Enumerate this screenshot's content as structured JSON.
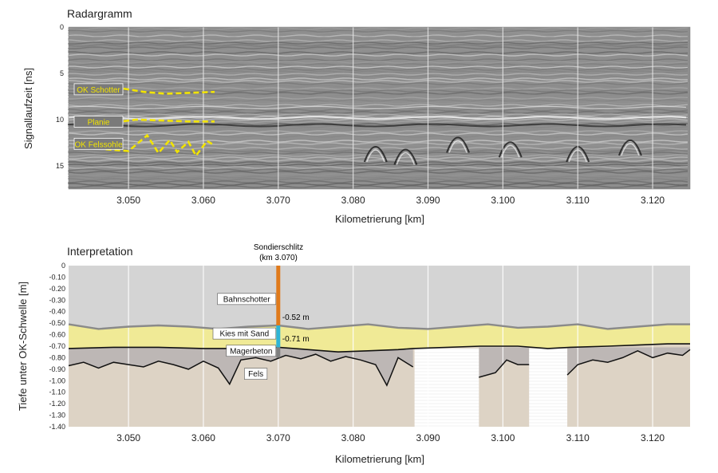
{
  "chart_data": [
    {
      "type": "heatmap",
      "title": "Radargramm",
      "xlabel": "Kilometrierung [km]",
      "ylabel": "Signallaufzeit [ns]",
      "xlim": [
        3.042,
        3.125
      ],
      "ylim": [
        0,
        17.5
      ],
      "x_ticks": [
        "3.050",
        "3.060",
        "3.070",
        "3.080",
        "3.090",
        "3.100",
        "3.110",
        "3.120"
      ],
      "y_ticks": [
        "0",
        "5",
        "10",
        "15"
      ],
      "horizons": [
        {
          "label": "OK Schotter",
          "color": "#f2e400",
          "x": [
            3.0435,
            3.046,
            3.049,
            3.052,
            3.055,
            3.058,
            3.0615
          ],
          "y": [
            6.8,
            6.9,
            6.6,
            7.0,
            7.2,
            7.1,
            7.0
          ]
        },
        {
          "label": "Planie",
          "color": "#f2e400",
          "x": [
            3.0435,
            3.047,
            3.051,
            3.055,
            3.058,
            3.0615
          ],
          "y": [
            10.3,
            10.4,
            10.0,
            10.1,
            10.2,
            10.2
          ]
        },
        {
          "label": "OK Felssohle",
          "color": "#f2e400",
          "x": [
            3.0435,
            3.047,
            3.05,
            3.0525,
            3.054,
            3.0555,
            3.0565,
            3.058,
            3.059,
            3.0605,
            3.0615
          ],
          "y": [
            12.7,
            13.2,
            13.4,
            11.7,
            13.6,
            12.2,
            13.5,
            12.4,
            13.9,
            12.3,
            12.8
          ]
        }
      ]
    },
    {
      "type": "area",
      "title": "Interpretation",
      "xlabel": "Kilometrierung [km]",
      "ylabel": "Tiefe unter OK-Schwelle [m]",
      "xlim": [
        3.042,
        3.125
      ],
      "ylim": [
        -1.4,
        0
      ],
      "x_ticks": [
        "3.050",
        "3.060",
        "3.070",
        "3.080",
        "3.090",
        "3.100",
        "3.110",
        "3.120"
      ],
      "y_ticks": [
        "0",
        "-0.10",
        "-0.20",
        "-0.30",
        "-0.40",
        "-0.50",
        "-0.60",
        "-0.70",
        "-0.80",
        "-0.90",
        "-1.00",
        "-1.10",
        "-1.20",
        "-1.30",
        "-1.40"
      ],
      "layers": [
        "Bahnschotter",
        "Kies mit Sand",
        "Magerbeton",
        "Fels"
      ],
      "colors": {
        "Bahnschotter": "#d4d4d4",
        "Kies mit Sand": "#f0ea96",
        "Magerbeton": "#bdb7b5",
        "Fels": "#ddd3c5"
      },
      "series": [
        {
          "x": [
            3.042,
            3.046,
            3.05,
            3.054,
            3.058,
            3.062,
            3.066,
            3.07,
            3.074,
            3.078,
            3.082,
            3.086,
            3.09,
            3.094,
            3.098,
            3.102,
            3.106,
            3.11,
            3.114,
            3.118,
            3.122,
            3.125
          ],
          "y": [
            -0.51,
            -0.55,
            -0.53,
            -0.52,
            -0.53,
            -0.55,
            -0.53,
            -0.52,
            -0.55,
            -0.53,
            -0.51,
            -0.54,
            -0.55,
            -0.53,
            -0.51,
            -0.54,
            -0.53,
            -0.51,
            -0.55,
            -0.53,
            -0.51,
            -0.51
          ]
        },
        {
          "x": [
            3.042,
            3.048,
            3.054,
            3.06,
            3.066,
            3.07,
            3.074,
            3.078,
            3.082,
            3.086,
            3.088,
            3.097,
            3.102,
            3.106,
            3.109,
            3.114,
            3.118,
            3.122,
            3.125
          ],
          "y": [
            -0.72,
            -0.71,
            -0.71,
            -0.72,
            -0.72,
            -0.71,
            -0.73,
            -0.75,
            -0.74,
            -0.73,
            -0.72,
            -0.7,
            -0.7,
            -0.72,
            -0.71,
            -0.7,
            -0.69,
            -0.68,
            -0.68
          ]
        },
        {
          "x": [
            3.042,
            3.044,
            3.046,
            3.048,
            3.05,
            3.052,
            3.054,
            3.056,
            3.058,
            3.06,
            3.062,
            3.0635,
            3.065,
            3.067,
            3.069,
            3.071,
            3.073,
            3.075,
            3.077,
            3.079,
            3.081,
            3.083,
            3.0845,
            3.086,
            3.088
          ],
          "y": [
            -0.87,
            -0.84,
            -0.89,
            -0.84,
            -0.86,
            -0.88,
            -0.83,
            -0.86,
            -0.9,
            -0.83,
            -0.89,
            -1.03,
            -0.82,
            -0.8,
            -0.83,
            -0.78,
            -0.81,
            -0.77,
            -0.83,
            -0.79,
            -0.82,
            -0.86,
            -1.04,
            -0.8,
            -0.88
          ]
        },
        {
          "x": [
            3.0968,
            3.099,
            3.1005,
            3.102,
            3.1035
          ],
          "y": [
            -0.97,
            -0.93,
            -0.82,
            -0.86,
            -0.86
          ]
        },
        {
          "x": [
            3.1086,
            3.11,
            3.112,
            3.114,
            3.116,
            3.118,
            3.12,
            3.122,
            3.124,
            3.125
          ],
          "y": [
            -0.95,
            -0.86,
            -0.82,
            -0.84,
            -0.8,
            -0.74,
            -0.8,
            -0.76,
            -0.78,
            -0.73
          ]
        }
      ],
      "gaps": [
        [
          3.0882,
          3.0968
        ],
        [
          3.1035,
          3.1086
        ]
      ],
      "borehole": {
        "title": "Sondierschlitz",
        "km_label": "(km 3.070)",
        "depth_1": "-0.52 m",
        "depth_2": "-0.71 m"
      }
    }
  ]
}
